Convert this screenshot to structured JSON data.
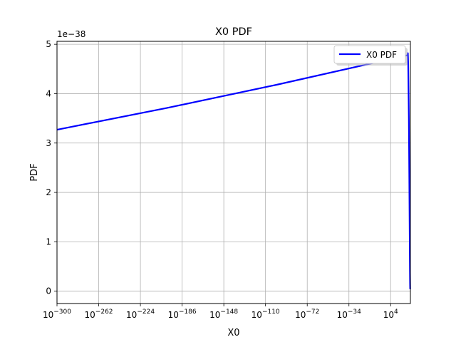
{
  "chart_data": {
    "type": "line",
    "title": "X0 PDF",
    "xlabel": "X0",
    "ylabel": "PDF",
    "y_offset_label": "1e−38",
    "x_scale": "log",
    "x_ticks": [
      {
        "base": "10",
        "exp": "−300"
      },
      {
        "base": "10",
        "exp": "−262"
      },
      {
        "base": "10",
        "exp": "−224"
      },
      {
        "base": "10",
        "exp": "−186"
      },
      {
        "base": "10",
        "exp": "−148"
      },
      {
        "base": "10",
        "exp": "−110"
      },
      {
        "base": "10",
        "exp": "−72"
      },
      {
        "base": "10",
        "exp": "−34"
      },
      {
        "base": "10",
        "exp": "4"
      }
    ],
    "x_tick_values": [
      -300,
      -262,
      -224,
      -186,
      -148,
      -110,
      -72,
      -34,
      4
    ],
    "xlim_log10": [
      -300,
      22
    ],
    "y_ticks": [
      "0",
      "1",
      "2",
      "3",
      "4",
      "5"
    ],
    "y_tick_values": [
      0,
      1,
      2,
      3,
      4,
      5
    ],
    "ylim": [
      -0.25,
      5.06
    ],
    "grid": true,
    "legend": {
      "placement": "top-right",
      "entries": [
        "X0 PDF"
      ]
    },
    "series": [
      {
        "name": "X0 PDF",
        "color": "#0000ff",
        "x_log10": [
          -300,
          -200,
          -100,
          0,
          12,
          19.5,
          19.7,
          20.0,
          20.6,
          21.0,
          21.4,
          21.6,
          21.7,
          21.75,
          21.8
        ],
        "y": [
          3.27,
          3.71,
          4.18,
          4.68,
          4.74,
          4.78,
          4.82,
          4.6,
          3.5,
          2.3,
          1.0,
          0.4,
          0.15,
          0.08,
          0.04
        ]
      }
    ]
  }
}
